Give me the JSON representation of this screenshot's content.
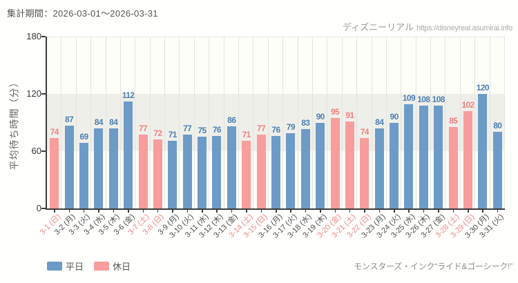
{
  "header": {
    "period_label": "集計期間：2026-03-01～2026-03-31",
    "site_name": "ディズニーリアル",
    "site_url": "https://disneyreal.asumirai.info"
  },
  "legend": {
    "weekday": "平日",
    "holiday": "休日"
  },
  "footer": {
    "attraction": "モンスターズ・インク“ライド&ゴーシーク!”"
  },
  "colors": {
    "weekday_bar": "#6d9bc7",
    "weekday_label": "#4c7fb2",
    "holiday_bar": "#f99c9c",
    "holiday_label": "#f37e7e",
    "axis": "#3c3c3c",
    "band_light": "#fcfef7",
    "band_gray": "#efefea",
    "gridline": "#e4e4df"
  },
  "chart_data": {
    "type": "bar",
    "title": "集計期間：2026-03-01～2026-03-31",
    "xlabel": "",
    "ylabel": "平均待ち時間（分）",
    "ylim": [
      0,
      180
    ],
    "yticks": [
      0,
      60,
      120,
      180
    ],
    "grid": "vertical lines between categories, alternating horizontal bands per 60",
    "legend_position": "bottom-left",
    "categories": [
      "3-1 (日)",
      "3-2 (月)",
      "3-3 (火)",
      "3-4 (水)",
      "3-5 (木)",
      "3-6 (金)",
      "3-7 (土)",
      "3-8 (日)",
      "3-9 (月)",
      "3-10 (火)",
      "3-11 (水)",
      "3-12 (木)",
      "3-13 (金)",
      "3-14 (土)",
      "3-15 (日)",
      "3-16 (月)",
      "3-17 (火)",
      "3-18 (水)",
      "3-19 (木)",
      "3-20 (金)",
      "3-21 (土)",
      "3-22 (日)",
      "3-23 (月)",
      "3-24 (火)",
      "3-25 (水)",
      "3-26 (木)",
      "3-27 (金)",
      "3-28 (土)",
      "3-29 (日)",
      "3-30 (月)",
      "3-31 (火)"
    ],
    "values": [
      74,
      87,
      69,
      84,
      84,
      112,
      77,
      72,
      71,
      77,
      75,
      76,
      86,
      71,
      77,
      76,
      79,
      83,
      90,
      95,
      91,
      74,
      84,
      90,
      109,
      108,
      108,
      85,
      102,
      120,
      80
    ],
    "day_types": [
      "holiday",
      "weekday",
      "weekday",
      "weekday",
      "weekday",
      "weekday",
      "holiday",
      "holiday",
      "weekday",
      "weekday",
      "weekday",
      "weekday",
      "weekday",
      "holiday",
      "holiday",
      "weekday",
      "weekday",
      "weekday",
      "weekday",
      "holiday",
      "holiday",
      "holiday",
      "weekday",
      "weekday",
      "weekday",
      "weekday",
      "weekday",
      "holiday",
      "holiday",
      "weekday",
      "weekday"
    ],
    "series": [
      {
        "name": "平日",
        "color": "#6d9bc7"
      },
      {
        "name": "休日",
        "color": "#f99c9c"
      }
    ]
  }
}
